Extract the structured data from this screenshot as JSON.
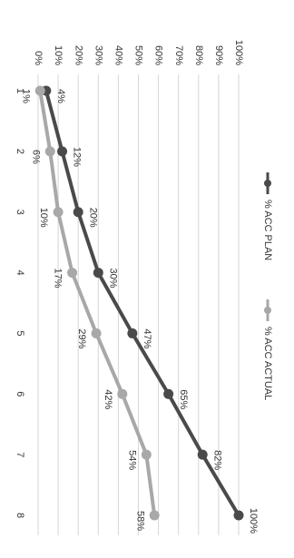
{
  "chart_data": {
    "type": "line",
    "categories": [
      "1",
      "2",
      "3",
      "4",
      "5",
      "6",
      "7",
      "8"
    ],
    "series": [
      {
        "name": "% ACC PLAN",
        "color": "#4a4a4a",
        "values": [
          4,
          12,
          20,
          30,
          47,
          65,
          82,
          100
        ],
        "value_labels": [
          "4%",
          "12%",
          "20%",
          "30%",
          "47%",
          "65%",
          "82%",
          "100%"
        ]
      },
      {
        "name": "% ACC ACTUAL",
        "color": "#a8a8a8",
        "values": [
          1,
          6,
          10,
          17,
          29,
          42,
          54,
          58
        ],
        "value_labels": [
          "1%",
          "6%",
          "10%",
          "17%",
          "29%",
          "42%",
          "54%",
          "58%"
        ]
      }
    ],
    "ylim": [
      0,
      100
    ],
    "yticks": [
      {
        "value": 0,
        "label": "0%"
      },
      {
        "value": 10,
        "label": "10%"
      },
      {
        "value": 20,
        "label": "20%"
      },
      {
        "value": 30,
        "label": "30%"
      },
      {
        "value": 40,
        "label": "40%"
      },
      {
        "value": 50,
        "label": "50%"
      },
      {
        "value": 60,
        "label": "60%"
      },
      {
        "value": 70,
        "label": "70%"
      },
      {
        "value": 80,
        "label": "80%"
      },
      {
        "value": 90,
        "label": "90%"
      },
      {
        "value": 100,
        "label": "100%"
      }
    ],
    "grid": true,
    "legend": "top"
  }
}
